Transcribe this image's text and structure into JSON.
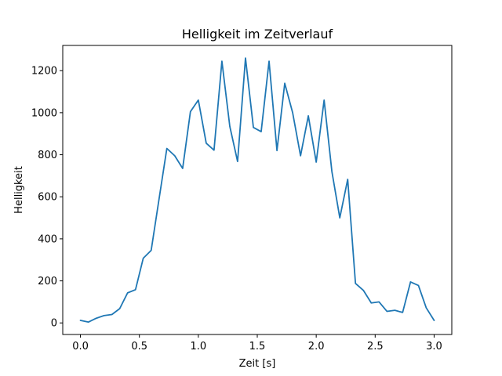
{
  "chart_data": {
    "type": "line",
    "title": "Helligkeit im Zeitverlauf",
    "xlabel": "Zeit [s]",
    "ylabel": "Helligkeit",
    "xlim": [
      -0.15,
      3.15
    ],
    "ylim": [
      -55,
      1320
    ],
    "xticks": [
      0.0,
      0.5,
      1.0,
      1.5,
      2.0,
      2.5,
      3.0
    ],
    "xtick_labels": [
      "0.0",
      "0.5",
      "1.0",
      "1.5",
      "2.0",
      "2.5",
      "3.0"
    ],
    "yticks": [
      0,
      200,
      400,
      600,
      800,
      1000,
      1200
    ],
    "ytick_labels": [
      "0",
      "200",
      "400",
      "600",
      "800",
      "1000",
      "1200"
    ],
    "grid": false,
    "series": [
      {
        "color": "#1f77b4",
        "x": [
          0.0,
          0.067,
          0.133,
          0.2,
          0.267,
          0.333,
          0.4,
          0.467,
          0.533,
          0.6,
          0.667,
          0.733,
          0.8,
          0.867,
          0.933,
          1.0,
          1.067,
          1.133,
          1.2,
          1.267,
          1.333,
          1.4,
          1.467,
          1.533,
          1.6,
          1.667,
          1.733,
          1.8,
          1.867,
          1.933,
          2.0,
          2.067,
          2.133,
          2.2,
          2.267,
          2.333,
          2.4,
          2.467,
          2.533,
          2.6,
          2.667,
          2.733,
          2.8,
          2.867,
          2.933,
          3.0
        ],
        "y": [
          12,
          4,
          22,
          35,
          40,
          68,
          143,
          158,
          308,
          345,
          590,
          830,
          795,
          735,
          1005,
          1060,
          855,
          822,
          1245,
          935,
          768,
          1260,
          930,
          910,
          1245,
          820,
          1140,
          1000,
          795,
          985,
          765,
          1060,
          720,
          500,
          683,
          188,
          155,
          95,
          100,
          55,
          60,
          50,
          195,
          178,
          72,
          12
        ]
      }
    ]
  }
}
